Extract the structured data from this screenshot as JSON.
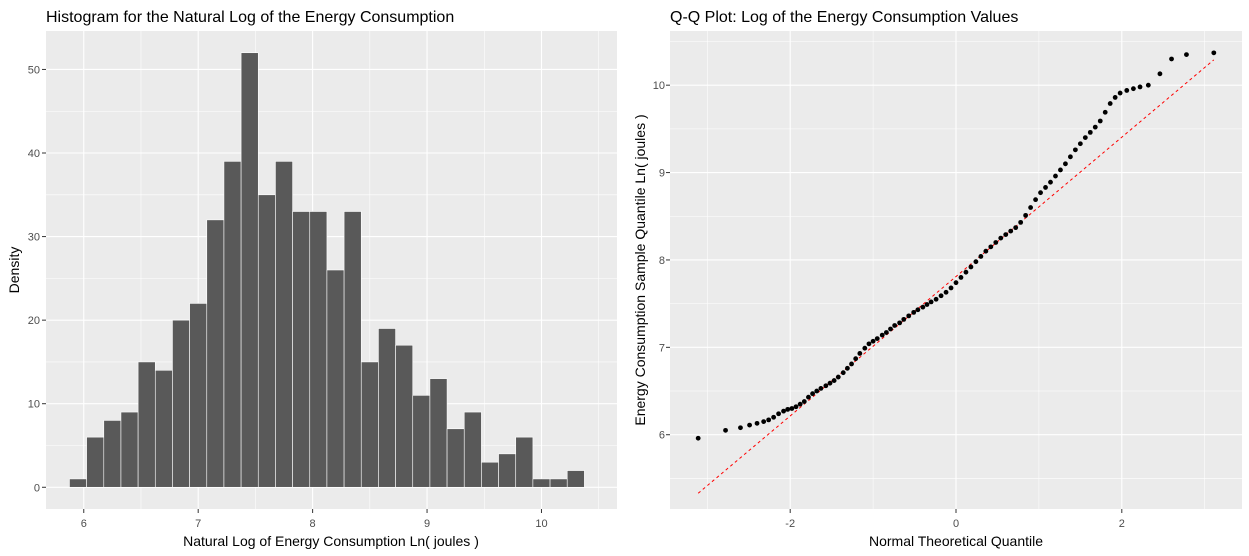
{
  "chart_data": [
    {
      "type": "bar",
      "title": "Histogram for the Natural Log of the Energy Consumption",
      "xlabel": "Natural Log of Energy Consumption Ln( joules )",
      "ylabel": "Density",
      "xlim": [
        5.67,
        10.66
      ],
      "ylim": [
        -2.6,
        54.6
      ],
      "xticks": [
        "6",
        "7",
        "8",
        "9",
        "10"
      ],
      "yticks": [
        "0",
        "10",
        "20",
        "30",
        "40",
        "50"
      ],
      "grid": true,
      "bar_color": "#595959",
      "panel_color": "#ebebeb",
      "bins": [
        {
          "from": 5.875,
          "to": 6.025,
          "value": 1
        },
        {
          "from": 6.025,
          "to": 6.175,
          "value": 6
        },
        {
          "from": 6.175,
          "to": 6.325,
          "value": 8
        },
        {
          "from": 6.325,
          "to": 6.475,
          "value": 9
        },
        {
          "from": 6.475,
          "to": 6.625,
          "value": 15
        },
        {
          "from": 6.625,
          "to": 6.775,
          "value": 14
        },
        {
          "from": 6.775,
          "to": 6.925,
          "value": 20
        },
        {
          "from": 6.925,
          "to": 7.075,
          "value": 22
        },
        {
          "from": 7.075,
          "to": 7.225,
          "value": 32
        },
        {
          "from": 7.225,
          "to": 7.375,
          "value": 39
        },
        {
          "from": 7.375,
          "to": 7.525,
          "value": 52
        },
        {
          "from": 7.525,
          "to": 7.675,
          "value": 35
        },
        {
          "from": 7.675,
          "to": 7.825,
          "value": 39
        },
        {
          "from": 7.825,
          "to": 7.975,
          "value": 33
        },
        {
          "from": 7.975,
          "to": 8.125,
          "value": 33
        },
        {
          "from": 8.125,
          "to": 8.275,
          "value": 26
        },
        {
          "from": 8.275,
          "to": 8.425,
          "value": 33
        },
        {
          "from": 8.425,
          "to": 8.575,
          "value": 15
        },
        {
          "from": 8.575,
          "to": 8.725,
          "value": 19
        },
        {
          "from": 8.725,
          "to": 8.875,
          "value": 17
        },
        {
          "from": 8.875,
          "to": 9.025,
          "value": 11
        },
        {
          "from": 9.025,
          "to": 9.175,
          "value": 13
        },
        {
          "from": 9.175,
          "to": 9.325,
          "value": 7
        },
        {
          "from": 9.325,
          "to": 9.475,
          "value": 9
        },
        {
          "from": 9.475,
          "to": 9.625,
          "value": 3
        },
        {
          "from": 9.625,
          "to": 9.775,
          "value": 4
        },
        {
          "from": 9.775,
          "to": 9.925,
          "value": 6
        },
        {
          "from": 9.925,
          "to": 10.075,
          "value": 1
        },
        {
          "from": 10.075,
          "to": 10.225,
          "value": 1
        },
        {
          "from": 10.225,
          "to": 10.375,
          "value": 2
        }
      ]
    },
    {
      "type": "scatter",
      "title": "Q-Q Plot: Log of the Energy Consumption Values",
      "xlabel": "Normal Theoretical Quantile",
      "ylabel": "Energy Consumption Sample Quantile Ln( joules )",
      "xlim": [
        -3.45,
        3.45
      ],
      "ylim": [
        5.15,
        10.62
      ],
      "xticks": [
        "-2",
        "0",
        "2"
      ],
      "yticks": [
        "6",
        "7",
        "8",
        "9",
        "10"
      ],
      "grid": true,
      "point_color": "#000000",
      "reference_line": {
        "from": [
          -3.11,
          5.33
        ],
        "to": [
          3.11,
          10.29
        ],
        "color": "#ff0000",
        "style": "dashed"
      },
      "points": [
        [
          -3.11,
          5.96
        ],
        [
          -2.78,
          6.05
        ],
        [
          -2.6,
          6.08
        ],
        [
          -2.49,
          6.11
        ],
        [
          -2.4,
          6.13
        ],
        [
          -2.32,
          6.15
        ],
        [
          -2.26,
          6.17
        ],
        [
          -2.2,
          6.2
        ],
        [
          -2.14,
          6.24
        ],
        [
          -2.08,
          6.27
        ],
        [
          -2.03,
          6.29
        ],
        [
          -1.98,
          6.3
        ],
        [
          -1.93,
          6.32
        ],
        [
          -1.88,
          6.35
        ],
        [
          -1.83,
          6.38
        ],
        [
          -1.78,
          6.43
        ],
        [
          -1.73,
          6.47
        ],
        [
          -1.68,
          6.5
        ],
        [
          -1.63,
          6.53
        ],
        [
          -1.57,
          6.56
        ],
        [
          -1.52,
          6.59
        ],
        [
          -1.47,
          6.62
        ],
        [
          -1.42,
          6.66
        ],
        [
          -1.36,
          6.71
        ],
        [
          -1.31,
          6.76
        ],
        [
          -1.26,
          6.81
        ],
        [
          -1.21,
          6.87
        ],
        [
          -1.16,
          6.93
        ],
        [
          -1.1,
          6.99
        ],
        [
          -1.05,
          7.04
        ],
        [
          -1.0,
          7.07
        ],
        [
          -0.95,
          7.1
        ],
        [
          -0.89,
          7.14
        ],
        [
          -0.84,
          7.17
        ],
        [
          -0.79,
          7.21
        ],
        [
          -0.74,
          7.25
        ],
        [
          -0.68,
          7.28
        ],
        [
          -0.63,
          7.32
        ],
        [
          -0.57,
          7.36
        ],
        [
          -0.51,
          7.4
        ],
        [
          -0.46,
          7.43
        ],
        [
          -0.4,
          7.46
        ],
        [
          -0.35,
          7.49
        ],
        [
          -0.3,
          7.52
        ],
        [
          -0.24,
          7.55
        ],
        [
          -0.18,
          7.59
        ],
        [
          -0.12,
          7.63
        ],
        [
          -0.06,
          7.68
        ],
        [
          0.0,
          7.74
        ],
        [
          0.06,
          7.8
        ],
        [
          0.12,
          7.86
        ],
        [
          0.18,
          7.92
        ],
        [
          0.24,
          7.98
        ],
        [
          0.3,
          8.04
        ],
        [
          0.36,
          8.1
        ],
        [
          0.42,
          8.15
        ],
        [
          0.48,
          8.2
        ],
        [
          0.54,
          8.25
        ],
        [
          0.6,
          8.29
        ],
        [
          0.66,
          8.33
        ],
        [
          0.72,
          8.37
        ],
        [
          0.78,
          8.43
        ],
        [
          0.84,
          8.51
        ],
        [
          0.9,
          8.6
        ],
        [
          0.96,
          8.69
        ],
        [
          1.02,
          8.77
        ],
        [
          1.08,
          8.83
        ],
        [
          1.14,
          8.89
        ],
        [
          1.2,
          8.96
        ],
        [
          1.26,
          9.03
        ],
        [
          1.32,
          9.1
        ],
        [
          1.38,
          9.18
        ],
        [
          1.44,
          9.26
        ],
        [
          1.5,
          9.33
        ],
        [
          1.56,
          9.4
        ],
        [
          1.62,
          9.46
        ],
        [
          1.68,
          9.52
        ],
        [
          1.74,
          9.59
        ],
        [
          1.8,
          9.69
        ],
        [
          1.86,
          9.79
        ],
        [
          1.92,
          9.86
        ],
        [
          1.98,
          9.91
        ],
        [
          2.06,
          9.94
        ],
        [
          2.14,
          9.96
        ],
        [
          2.22,
          9.98
        ],
        [
          2.32,
          10.0
        ],
        [
          2.46,
          10.13
        ],
        [
          2.6,
          10.3
        ],
        [
          2.78,
          10.35
        ],
        [
          3.11,
          10.37
        ]
      ]
    }
  ]
}
